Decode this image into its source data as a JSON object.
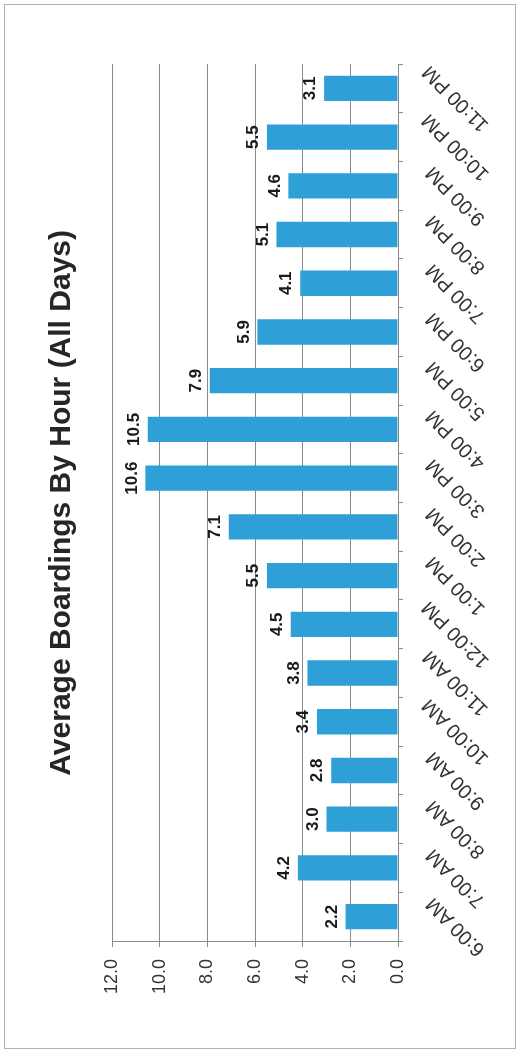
{
  "chart_data": {
    "type": "bar",
    "orientation": "horizontal",
    "title": "Average Boardings By Hour (All Days)",
    "categories": [
      "11:00 PM",
      "10:00 PM",
      "9:00 PM",
      "8:00 PM",
      "7:00 PM",
      "6:00 PM",
      "5:00 PM",
      "4:00 PM",
      "3:00 PM",
      "2:00 PM",
      "1:00 PM",
      "12:00 PM",
      "11:00 AM",
      "10:00 AM",
      "9:00 AM",
      "8:00 AM",
      "7:00 AM",
      "6:00 AM"
    ],
    "values": [
      3.1,
      5.5,
      4.6,
      5.1,
      4.1,
      5.9,
      7.9,
      10.5,
      10.6,
      7.1,
      5.5,
      4.5,
      3.8,
      3.4,
      2.8,
      3.0,
      4.2,
      2.2
    ],
    "value_labels": [
      "3.1",
      "5.5",
      "4.6",
      "5.1",
      "4.1",
      "5.9",
      "7.9",
      "10.5",
      "10.6",
      "7.1",
      "5.5",
      "4.5",
      "3.8",
      "3.4",
      "2.8",
      "3.0",
      "4.2",
      "2.2"
    ],
    "color": "#2f9fd8",
    "xlim": [
      12,
      0
    ],
    "xticks": [
      {
        "value": 0,
        "label": "0.0"
      },
      {
        "value": 2,
        "label": "2.0"
      },
      {
        "value": 4,
        "label": "4.0"
      },
      {
        "value": 6,
        "label": "6.0"
      },
      {
        "value": 8,
        "label": "8.0"
      },
      {
        "value": 10,
        "label": "10.0"
      },
      {
        "value": 12,
        "label": "12.0"
      }
    ],
    "grid": "x"
  }
}
